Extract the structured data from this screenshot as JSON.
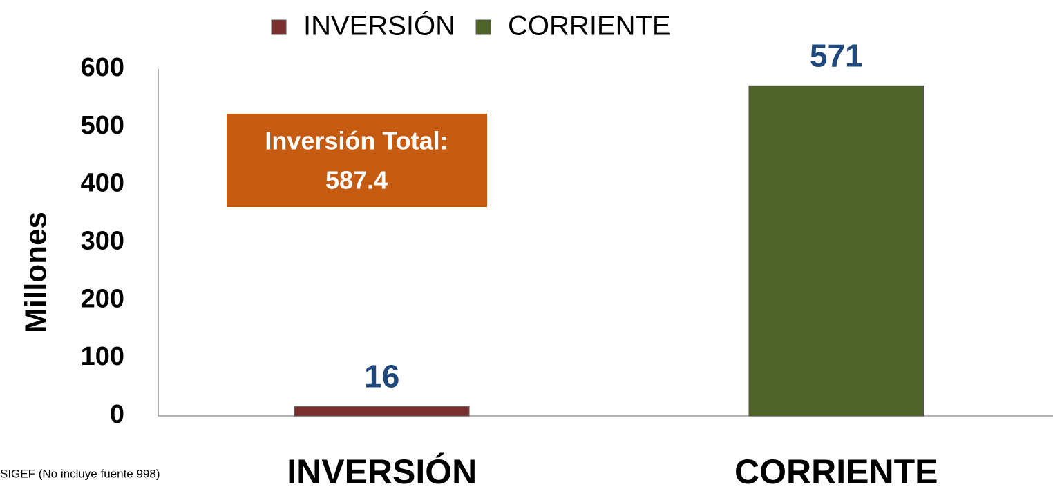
{
  "chart_data": {
    "type": "bar",
    "categories": [
      "INVERSIÓN",
      "CORRIENTE"
    ],
    "series": [
      {
        "name": "INVERSIÓN",
        "color": "#7b2e2e",
        "values": [
          16,
          null
        ]
      },
      {
        "name": "CORRIENTE",
        "color": "#4f6228",
        "values": [
          null,
          571
        ]
      }
    ],
    "y_label": "Millones",
    "ylim": [
      0,
      600
    ],
    "yticks": [
      0,
      100,
      200,
      300,
      400,
      500,
      600
    ],
    "grid": false,
    "legend": "top",
    "annotation": {
      "label": "Inversión Total:",
      "value": 587.4,
      "color": "#c55a11"
    },
    "footnote": "SIGEF (No incluye fuente 998)"
  }
}
